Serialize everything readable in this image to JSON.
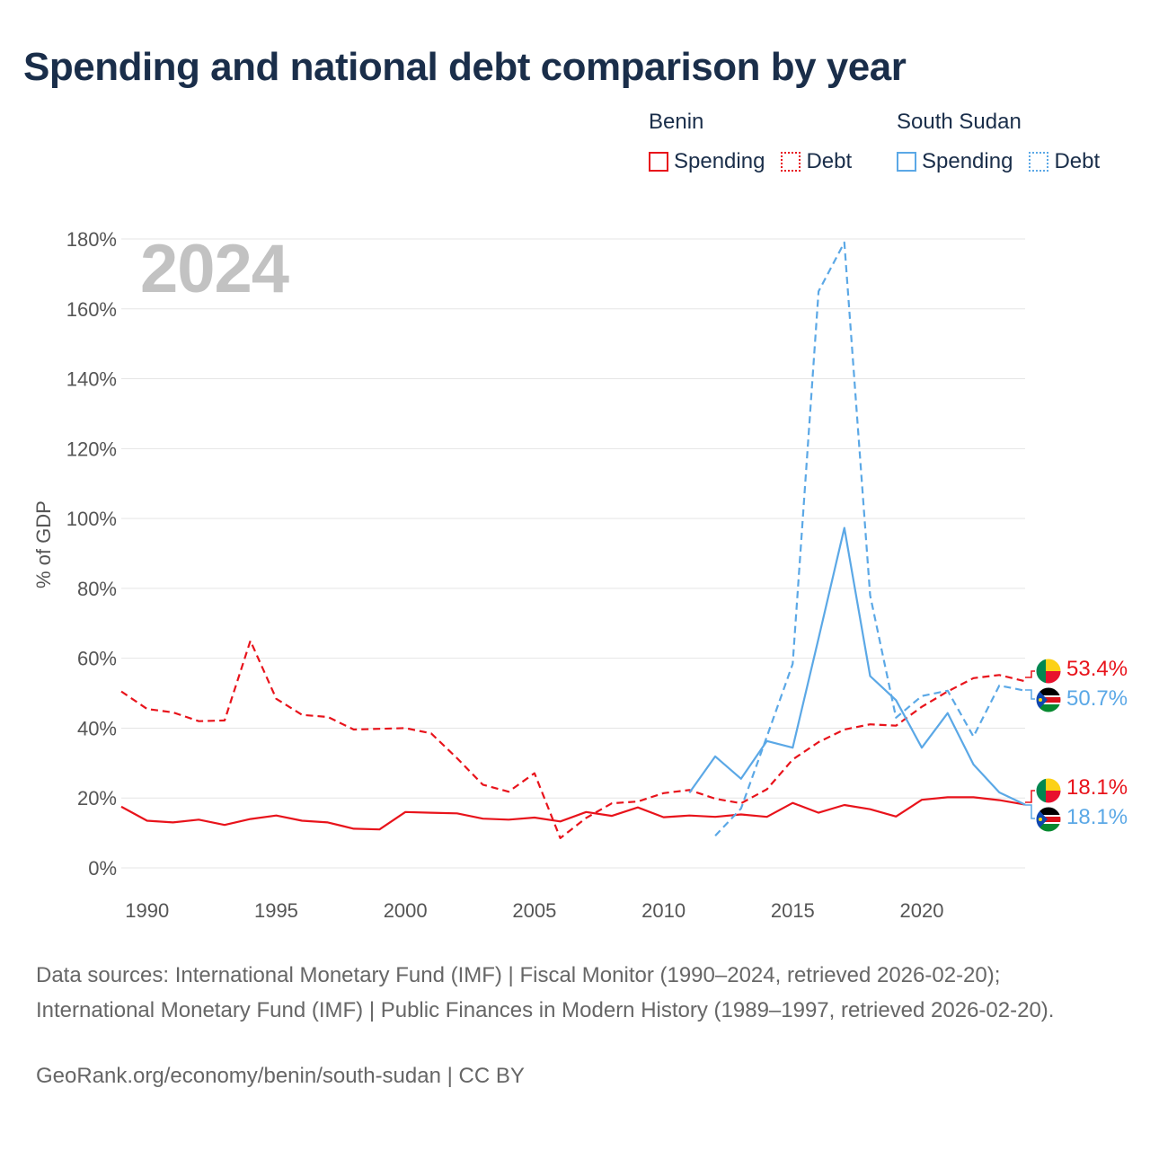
{
  "title": "Spending and national debt comparison by year",
  "year_badge": "2024",
  "legend": {
    "groups": [
      {
        "name": "Benin",
        "items": [
          {
            "label": "Spending",
            "style": "solid",
            "color": "#e8131b"
          },
          {
            "label": "Debt",
            "style": "dotted",
            "color": "#e8131b"
          }
        ]
      },
      {
        "name": "South Sudan",
        "items": [
          {
            "label": "Spending",
            "style": "solid",
            "color": "#5ba8e6"
          },
          {
            "label": "Debt",
            "style": "dotted",
            "color": "#5ba8e6"
          }
        ]
      }
    ]
  },
  "footer": {
    "sources": "Data sources: International Monetary Fund (IMF) | Fiscal Monitor (1990–2024, retrieved 2026-02-20); International Monetary Fund (IMF) | Public Finances in Modern History (1989–1997, retrieved 2026-02-20).",
    "credit": "GeoRank.org/economy/benin/south-sudan | CC BY"
  },
  "end_labels": {
    "benin_debt": "53.4%",
    "ssd_debt": "50.7%",
    "benin_spending": "18.1%",
    "ssd_spending": "18.1%"
  },
  "colors": {
    "benin": "#e8131b",
    "south_sudan": "#5ba8e6"
  },
  "chart_data": {
    "type": "line",
    "title": "Spending and national debt comparison by year",
    "xlabel": "",
    "ylabel": "% of GDP",
    "xlim": [
      1989,
      2024
    ],
    "ylim": [
      0,
      180
    ],
    "x_ticks": [
      1990,
      1995,
      2000,
      2005,
      2010,
      2015,
      2020
    ],
    "y_ticks": [
      0,
      20,
      40,
      60,
      80,
      100,
      120,
      140,
      160,
      180
    ],
    "y_tick_labels": [
      "0%",
      "20%",
      "40%",
      "60%",
      "80%",
      "100%",
      "120%",
      "140%",
      "160%",
      "180%"
    ],
    "grid": true,
    "series": [
      {
        "name": "Benin Spending",
        "country": "Benin",
        "style": "solid",
        "color": "#e8131b",
        "x": [
          1989,
          1990,
          1991,
          1992,
          1993,
          1994,
          1995,
          1996,
          1997,
          1998,
          1999,
          2000,
          2001,
          2002,
          2003,
          2004,
          2005,
          2006,
          2007,
          2008,
          2009,
          2010,
          2011,
          2012,
          2013,
          2014,
          2015,
          2016,
          2017,
          2018,
          2019,
          2020,
          2021,
          2022,
          2023,
          2024
        ],
        "values": [
          17.5,
          13.5,
          13,
          13.8,
          12.3,
          14,
          15,
          13.5,
          13,
          11.2,
          11,
          16,
          15.8,
          15.6,
          14.1,
          13.8,
          14.4,
          13.3,
          16,
          14.9,
          17.3,
          14.5,
          15,
          14.6,
          15.3,
          14.6,
          18.6,
          15.8,
          18,
          16.8,
          14.7,
          19.5,
          20.2,
          20.2,
          19.4,
          18.1
        ]
      },
      {
        "name": "Benin Debt",
        "country": "Benin",
        "style": "dashed",
        "color": "#e8131b",
        "x": [
          1989,
          1990,
          1991,
          1992,
          1993,
          1994,
          1995,
          1996,
          1997,
          1998,
          1999,
          2000,
          2001,
          2002,
          2003,
          2004,
          2005,
          2006,
          2007,
          2008,
          2009,
          2010,
          2011,
          2012,
          2013,
          2014,
          2015,
          2016,
          2017,
          2018,
          2019,
          2020,
          2021,
          2022,
          2023,
          2024
        ],
        "values": [
          50.5,
          45.5,
          44.5,
          42,
          42.2,
          65,
          48.4,
          43.8,
          43.2,
          39.6,
          39.8,
          40,
          38.5,
          31.4,
          23.8,
          21.8,
          27.1,
          8.5,
          14.3,
          18.5,
          19,
          21.4,
          22.3,
          19.8,
          18.5,
          22.5,
          31,
          36,
          39.6,
          41.1,
          40.7,
          46.1,
          50.5,
          54.3,
          55.2,
          53.4
        ]
      },
      {
        "name": "South Sudan Spending",
        "country": "South Sudan",
        "style": "solid",
        "color": "#5ba8e6",
        "x": [
          2011,
          2012,
          2013,
          2014,
          2015,
          2016,
          2017,
          2018,
          2019,
          2020,
          2021,
          2022,
          2023,
          2024
        ],
        "values": [
          21.5,
          31.9,
          25.5,
          36.3,
          34.4,
          65.7,
          97.3,
          54.9,
          48,
          34.4,
          44.3,
          29.6,
          21.6,
          18.1
        ]
      },
      {
        "name": "South Sudan Debt",
        "country": "South Sudan",
        "style": "dashed",
        "color": "#5ba8e6",
        "x": [
          2012,
          2013,
          2014,
          2015,
          2016,
          2017,
          2018,
          2019,
          2020,
          2021,
          2022,
          2023,
          2024
        ],
        "values": [
          9.2,
          17,
          37.6,
          58.4,
          165,
          179,
          78,
          43,
          49.2,
          50.7,
          37.6,
          52.2,
          50.7
        ]
      }
    ]
  }
}
